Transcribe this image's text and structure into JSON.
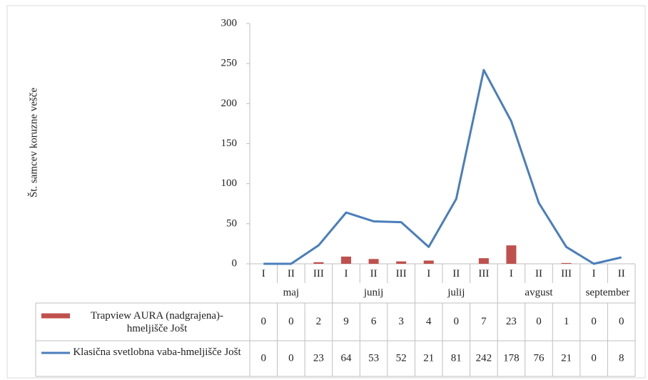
{
  "chart_data": {
    "type": "bar_line",
    "y_axis_label": "Št. samcev koruzne vešče",
    "months": [
      {
        "name": "maj",
        "decades": [
          "I",
          "II",
          "III"
        ]
      },
      {
        "name": "junij",
        "decades": [
          "I",
          "II",
          "III"
        ]
      },
      {
        "name": "julij",
        "decades": [
          "I",
          "II",
          "III"
        ]
      },
      {
        "name": "avgust",
        "decades": [
          "I",
          "II",
          "III"
        ]
      },
      {
        "name": "september",
        "decades": [
          "I",
          "II"
        ]
      }
    ],
    "series": [
      {
        "name": "Trapview AURA (nadgrajena)-hmeljišče Jošt",
        "type": "bar",
        "color": "#c0504d",
        "values": [
          0,
          0,
          2,
          9,
          6,
          3,
          4,
          0,
          7,
          23,
          0,
          1,
          0,
          0
        ]
      },
      {
        "name": "Klasična svetlobna vaba-hmeljišče Jošt",
        "type": "line",
        "color": "#4a7ebb",
        "values": [
          0,
          0,
          23,
          64,
          53,
          52,
          21,
          81,
          242,
          178,
          76,
          21,
          0,
          8
        ]
      }
    ],
    "ylim": [
      0,
      300
    ],
    "yticks": [
      0,
      50,
      100,
      150,
      200,
      250,
      300
    ],
    "grid": false
  }
}
